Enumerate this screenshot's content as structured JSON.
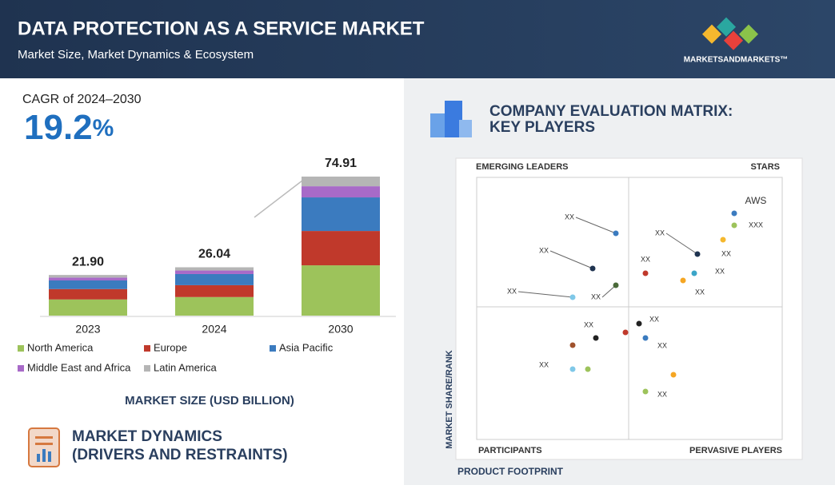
{
  "header": {
    "title": "DATA PROTECTION AS A SERVICE MARKET",
    "subtitle": "Market Size, Market Dynamics & Ecosystem",
    "brand": "MARKETSANDMARKETS™"
  },
  "cagr": {
    "label": "CAGR of 2024–2030",
    "value": 19.2,
    "unit": "%"
  },
  "chart_data": {
    "type": "stacked-bar",
    "categories": [
      "2023",
      "2024",
      "2030"
    ],
    "total_labels": [
      "21.90",
      "26.04",
      "74.91"
    ],
    "series": [
      {
        "name": "North America",
        "color": "#9dc35b",
        "values": [
          8.7,
          10.0,
          27.1
        ]
      },
      {
        "name": "Europe",
        "color": "#c0392b",
        "values": [
          5.6,
          6.4,
          18.5
        ]
      },
      {
        "name": "Asia Pacific",
        "color": "#3b7bbf",
        "values": [
          4.65,
          6.0,
          18.1
        ]
      },
      {
        "name": "Middle East and Africa",
        "color": "#a86ac8",
        "values": [
          1.55,
          1.9,
          6.0
        ]
      },
      {
        "name": "Latin America",
        "color": "#b5b5b5",
        "values": [
          1.4,
          1.74,
          5.21
        ]
      }
    ],
    "x_label": "MARKET SIZE (USD BILLION)"
  },
  "dynamics": {
    "title_line1": "MARKET DYNAMICS",
    "title_line2": "(DRIVERS AND RESTRAINTS)"
  },
  "matrix": {
    "title_line1": "COMPANY EVALUATION MATRIX:",
    "title_line2": "KEY PLAYERS",
    "quadrants": [
      "EMERGING LEADERS",
      "STARS",
      "PARTICIPANTS",
      "PERVASIVE PLAYERS"
    ],
    "y_label": "MARKET SHARE/RANK",
    "x_label": "PRODUCT FOOTPRINT",
    "point_labels": [
      "AWS",
      "XXX",
      "XX",
      "XX",
      "XX",
      "XX",
      "XX",
      "XX",
      "XX",
      "XX",
      "XX",
      "XX",
      "XX",
      "XX",
      "XX",
      "XX"
    ]
  }
}
